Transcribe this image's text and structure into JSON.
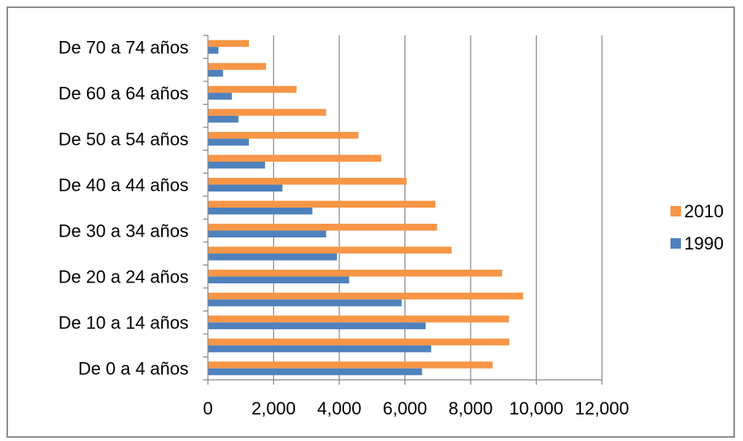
{
  "chart_data": {
    "type": "bar",
    "orientation": "horizontal",
    "categories": [
      "De 0 a 4 años",
      "",
      "De 10 a 14 años",
      "",
      "De 20 a 24 años",
      "",
      "De 30 a 34 años",
      "",
      "De 40 a 44 años",
      "",
      "De 50 a 54 años",
      "",
      "De 60 a 64 años",
      "",
      "De 70 a 74 años"
    ],
    "series": [
      {
        "name": "1990",
        "color": "#4f81bd",
        "values": [
          6520,
          6800,
          6630,
          5900,
          4300,
          3930,
          3600,
          3180,
          2270,
          1740,
          1250,
          930,
          730,
          460,
          320
        ]
      },
      {
        "name": "2010",
        "color": "#f79646",
        "values": [
          8670,
          9180,
          9170,
          9600,
          8960,
          7420,
          6980,
          6930,
          6050,
          5280,
          4580,
          3600,
          2700,
          1770,
          1250
        ]
      }
    ],
    "xlim": [
      0,
      12000
    ],
    "xticks": [
      0,
      2000,
      4000,
      6000,
      8000,
      10000,
      12000
    ],
    "xtick_labels": [
      "0",
      "2,000",
      "4,000",
      "6,000",
      "8,000",
      "10,000",
      "12,000"
    ],
    "grid": "vertical",
    "legend": "right",
    "title": "",
    "xlabel": "",
    "ylabel": ""
  },
  "legend": {
    "items": [
      {
        "label": "2010",
        "color": "#f79646"
      },
      {
        "label": "1990",
        "color": "#4f81bd"
      }
    ]
  }
}
